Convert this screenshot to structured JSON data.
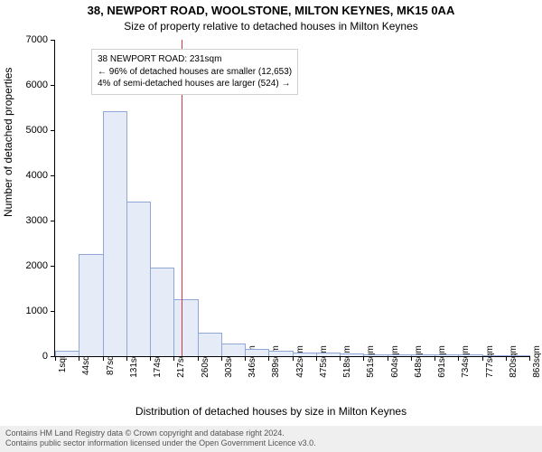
{
  "title": "38, NEWPORT ROAD, WOOLSTONE, MILTON KEYNES, MK15 0AA",
  "subtitle": "Size of property relative to detached houses in Milton Keynes",
  "ylabel": "Number of detached properties",
  "xlabel": "Distribution of detached houses by size in Milton Keynes",
  "chart": {
    "type": "histogram",
    "ylim": [
      0,
      7000
    ],
    "yticks": [
      0,
      1000,
      2000,
      3000,
      4000,
      5000,
      6000,
      7000
    ],
    "xtick_labels": [
      "1sqm",
      "44sqm",
      "87sqm",
      "131sqm",
      "174sqm",
      "217sqm",
      "260sqm",
      "303sqm",
      "346sqm",
      "389sqm",
      "432sqm",
      "475sqm",
      "518sqm",
      "561sqm",
      "604sqm",
      "648sqm",
      "691sqm",
      "734sqm",
      "777sqm",
      "820sqm",
      "863sqm"
    ],
    "bar_values": [
      100,
      2250,
      5400,
      3400,
      1950,
      1250,
      500,
      260,
      150,
      100,
      70,
      60,
      40,
      30,
      20,
      18,
      15,
      12,
      10,
      10
    ],
    "bar_fill": "#e6ecf7",
    "bar_stroke": "#8ea7d6",
    "vline_x_index": 5.35,
    "vline_color": "#dc3545"
  },
  "annotation": {
    "line1": "38 NEWPORT ROAD: 231sqm",
    "line2": "← 96% of detached houses are smaller (12,653)",
    "line3": "4% of semi-detached houses are larger (524) →"
  },
  "footer": {
    "line1": "Contains HM Land Registry data © Crown copyright and database right 2024.",
    "line2": "Contains public sector information licensed under the Open Government Licence v3.0."
  }
}
